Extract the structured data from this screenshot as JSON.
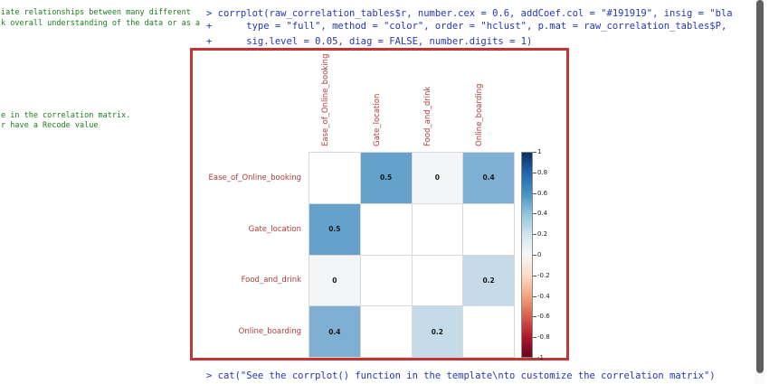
{
  "left_panel": {
    "lines": [
      "iate relationships between many different",
      "k overall understanding of the data or as a",
      "e in the correlation matrix.",
      "r have a Recode value"
    ]
  },
  "console": {
    "command_lines": [
      "> corrplot(raw_correlation_tables$r, number.cex = 0.6, addCoef.col = \"#191919\", insig = \"bla",
      "+      type = \"full\", method = \"color\", order = \"hclust\", p.mat = raw_correlation_tables$P,",
      "+      sig.level = 0.05, diag = FALSE, number.digits = 1)"
    ],
    "bottom_line": "> cat(\"See the corrplot() function in the template\\nto customize the correlation matrix\")"
  },
  "colors": {
    "console_text": "#2437b8",
    "editor_text": "#1e7d1e",
    "annotation_border": "#c53434",
    "axis_label": "#b23b3b",
    "coef_text": "#191919"
  },
  "chart_data": {
    "type": "heatmap",
    "title": "",
    "variables": [
      "Ease_of_Online_booking",
      "Gate_location",
      "Food_and_drink",
      "Online_boarding"
    ],
    "matrix": [
      [
        "",
        "0.5",
        "0",
        "0.4"
      ],
      [
        "0.5",
        "",
        "",
        ""
      ],
      [
        "0",
        "",
        "",
        "0.2"
      ],
      [
        "0.4",
        "",
        "0.2",
        ""
      ]
    ],
    "cell_colors": {
      "0.5": "#64a1cb",
      "0.4": "#7fb0d3",
      "0.2": "#c5dbe9",
      "0": "#f3f5f6"
    },
    "legend_ticks": [
      "1",
      "0.8",
      "0.6",
      "0.4",
      "0.2",
      "0",
      "-0.2",
      "-0.4",
      "-0.6",
      "-0.8",
      "-1"
    ],
    "legend_range": [
      1,
      -1
    ],
    "legend_colors": [
      "#053061",
      "#2166ac",
      "#4393c3",
      "#92c5de",
      "#d1e5f0",
      "#f7f7f7",
      "#fddbc7",
      "#f4a582",
      "#d6604d",
      "#b2182b",
      "#67001f"
    ],
    "grid": true,
    "legend_position": "right"
  }
}
